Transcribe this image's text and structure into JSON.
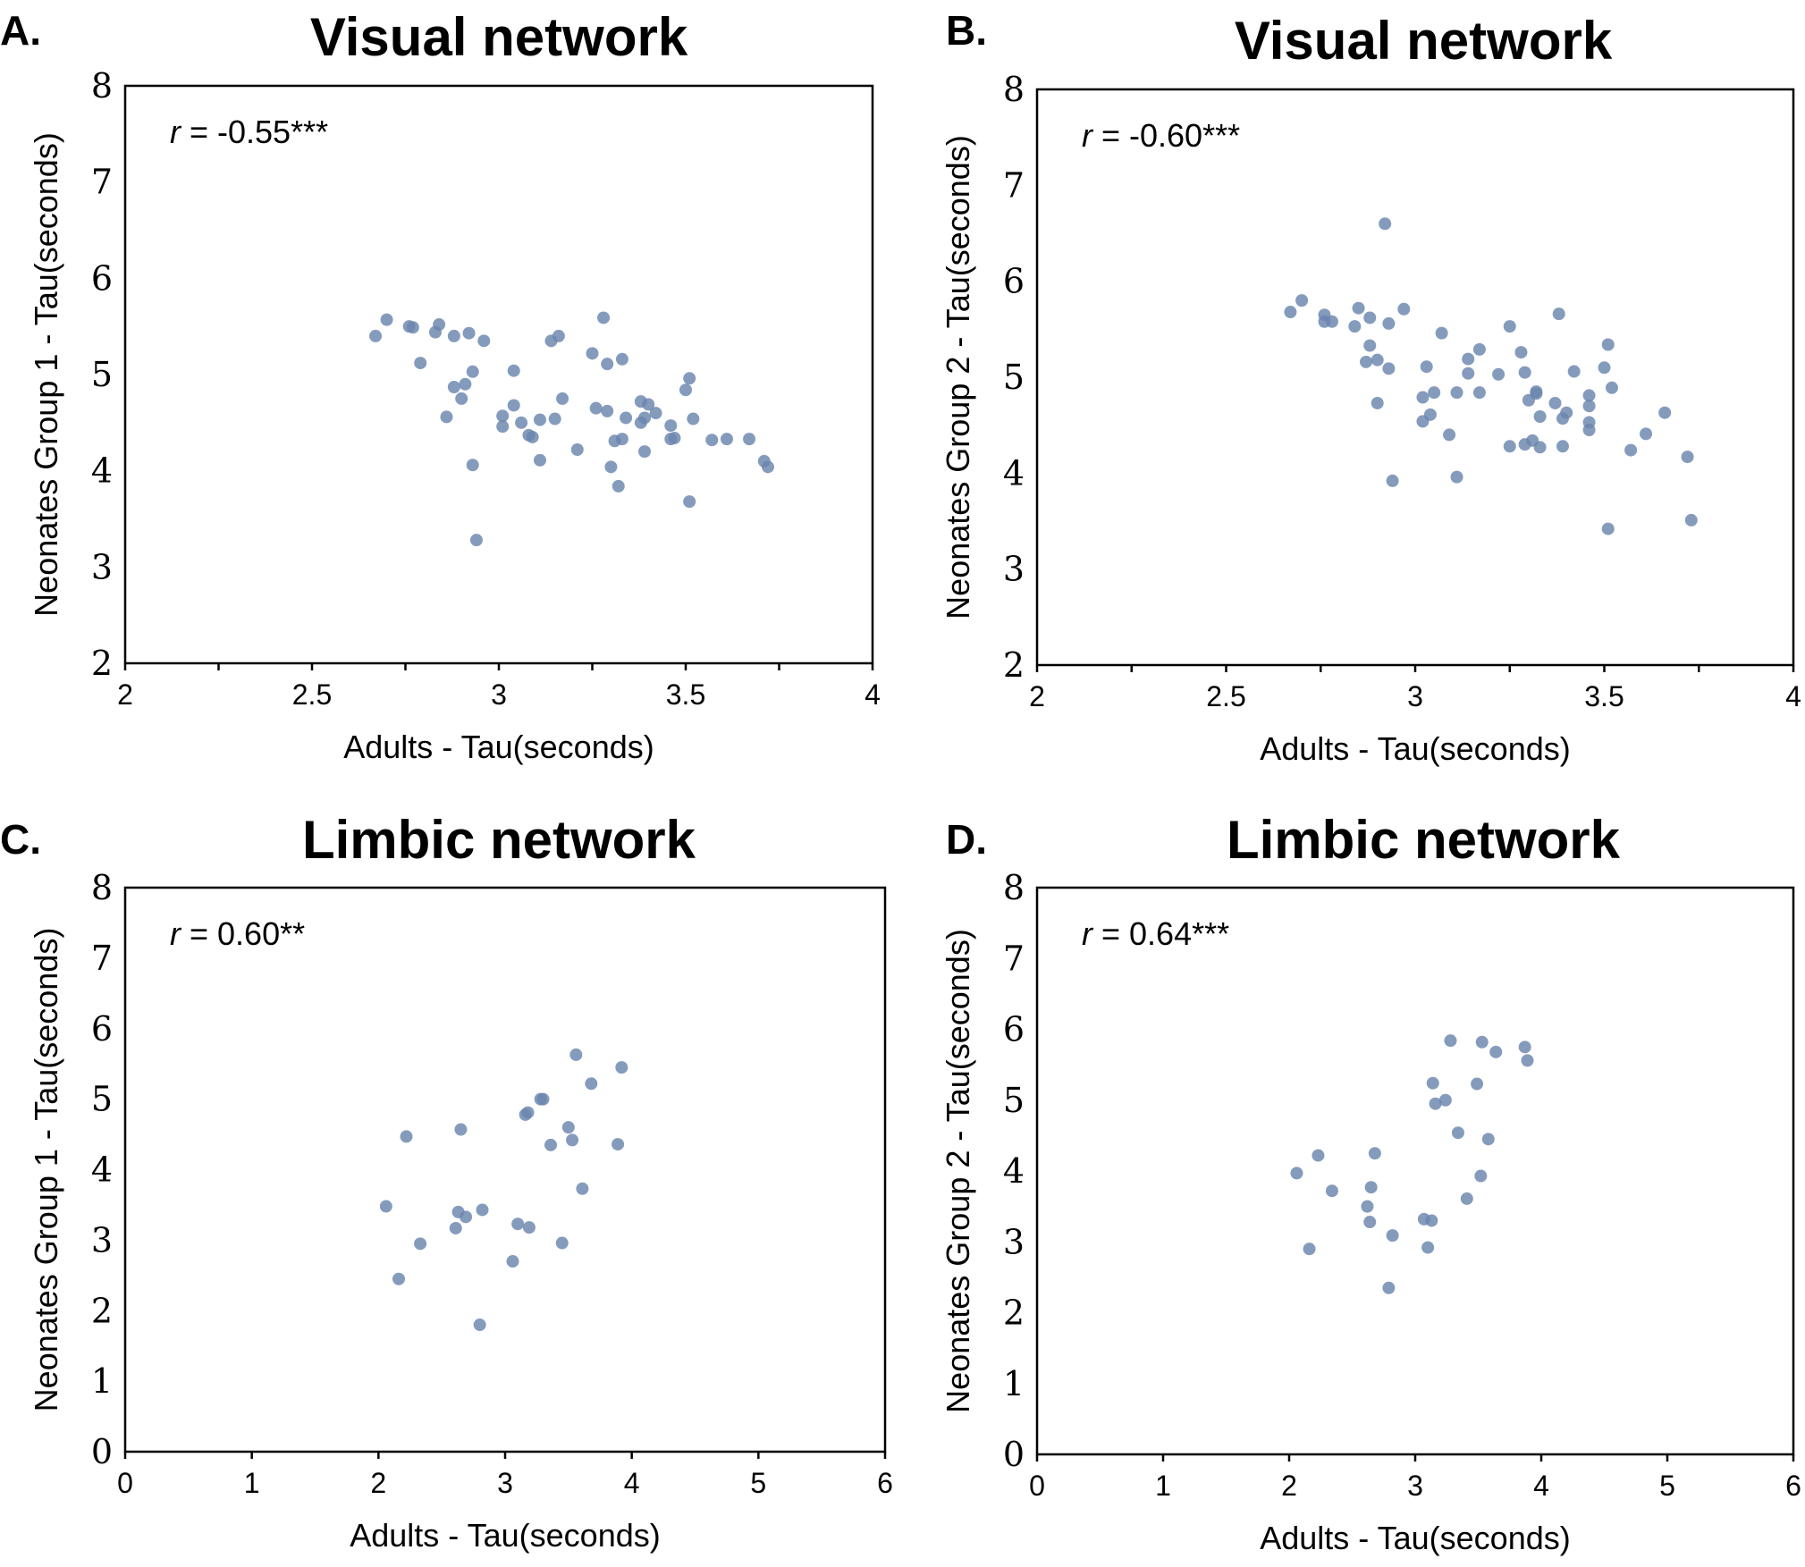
{
  "chart_data": [
    {
      "type": "scatter",
      "panel": "A.",
      "title": "Visual network",
      "xlabel": "Adults - Tau(seconds)",
      "ylabel": "Neonates Group 1 - Tau(seconds)",
      "annotation": {
        "r": "r",
        "text": " = -0.55***"
      },
      "xlim": [
        2,
        4
      ],
      "ylim": [
        2,
        8
      ],
      "xticks": [
        2,
        2.5,
        3,
        3.5,
        4
      ],
      "xtick_labels": [
        "2",
        "2.5",
        "3",
        "3.5",
        "4"
      ],
      "yticks": [
        2,
        3,
        4,
        5,
        6,
        7,
        8
      ],
      "ytick_labels": [
        "2",
        "3",
        "4",
        "5",
        "6",
        "7",
        "8"
      ],
      "point_color": "#6a85ad",
      "points": [
        [
          2.67,
          5.4
        ],
        [
          2.7,
          5.57
        ],
        [
          2.76,
          5.5
        ],
        [
          2.77,
          5.49
        ],
        [
          2.79,
          5.12
        ],
        [
          2.83,
          5.44
        ],
        [
          2.84,
          5.52
        ],
        [
          2.86,
          4.56
        ],
        [
          2.88,
          5.4
        ],
        [
          2.88,
          4.87
        ],
        [
          2.9,
          4.75
        ],
        [
          2.91,
          4.9
        ],
        [
          2.92,
          5.43
        ],
        [
          2.93,
          5.03
        ],
        [
          2.93,
          4.06
        ],
        [
          2.94,
          3.28
        ],
        [
          2.96,
          5.35
        ],
        [
          3.01,
          4.57
        ],
        [
          3.01,
          4.46
        ],
        [
          3.04,
          5.04
        ],
        [
          3.04,
          4.68
        ],
        [
          3.06,
          4.5
        ],
        [
          3.08,
          4.37
        ],
        [
          3.09,
          4.35
        ],
        [
          3.11,
          4.53
        ],
        [
          3.11,
          4.11
        ],
        [
          3.14,
          5.35
        ],
        [
          3.15,
          4.54
        ],
        [
          3.16,
          5.4
        ],
        [
          3.17,
          4.75
        ],
        [
          3.21,
          4.22
        ],
        [
          3.25,
          5.22
        ],
        [
          3.26,
          4.65
        ],
        [
          3.28,
          5.59
        ],
        [
          3.29,
          5.11
        ],
        [
          3.29,
          4.62
        ],
        [
          3.3,
          4.04
        ],
        [
          3.31,
          4.31
        ],
        [
          3.32,
          3.84
        ],
        [
          3.33,
          5.16
        ],
        [
          3.33,
          4.33
        ],
        [
          3.34,
          4.55
        ],
        [
          3.38,
          4.5
        ],
        [
          3.38,
          4.72
        ],
        [
          3.39,
          4.55
        ],
        [
          3.39,
          4.2
        ],
        [
          3.4,
          4.69
        ],
        [
          3.42,
          4.6
        ],
        [
          3.46,
          4.47
        ],
        [
          3.46,
          4.33
        ],
        [
          3.47,
          4.34
        ],
        [
          3.5,
          4.84
        ],
        [
          3.51,
          4.96
        ],
        [
          3.51,
          3.68
        ],
        [
          3.52,
          4.54
        ],
        [
          3.57,
          4.32
        ],
        [
          3.61,
          4.33
        ],
        [
          3.67,
          4.33
        ],
        [
          3.71,
          4.1
        ],
        [
          3.72,
          4.04
        ]
      ]
    },
    {
      "type": "scatter",
      "panel": "B.",
      "title": "Visual network",
      "xlabel": "Adults - Tau(seconds)",
      "ylabel": "Neonates Group 2 - Tau(seconds)",
      "annotation": {
        "r": "r",
        "text": " = -0.60***"
      },
      "xlim": [
        2,
        4
      ],
      "ylim": [
        2,
        8
      ],
      "xticks": [
        2,
        2.5,
        3,
        3.5,
        4
      ],
      "xtick_labels": [
        "2",
        "2.5",
        "3",
        "3.5",
        "4"
      ],
      "yticks": [
        2,
        3,
        4,
        5,
        6,
        7,
        8
      ],
      "ytick_labels": [
        "2",
        "3",
        "4",
        "5",
        "6",
        "7",
        "8"
      ],
      "point_color": "#6a85ad",
      "points": [
        [
          2.67,
          5.68
        ],
        [
          2.7,
          5.8
        ],
        [
          2.76,
          5.65
        ],
        [
          2.76,
          5.58
        ],
        [
          2.78,
          5.58
        ],
        [
          2.84,
          5.53
        ],
        [
          2.85,
          5.72
        ],
        [
          2.87,
          5.16
        ],
        [
          2.88,
          5.62
        ],
        [
          2.88,
          5.33
        ],
        [
          2.9,
          5.18
        ],
        [
          2.9,
          4.73
        ],
        [
          2.92,
          6.6
        ],
        [
          2.93,
          5.09
        ],
        [
          2.93,
          5.56
        ],
        [
          2.94,
          3.92
        ],
        [
          2.97,
          5.71
        ],
        [
          3.02,
          4.79
        ],
        [
          3.02,
          4.54
        ],
        [
          3.03,
          5.11
        ],
        [
          3.04,
          4.61
        ],
        [
          3.05,
          4.84
        ],
        [
          3.07,
          5.46
        ],
        [
          3.09,
          4.4
        ],
        [
          3.11,
          4.84
        ],
        [
          3.11,
          3.96
        ],
        [
          3.14,
          5.19
        ],
        [
          3.14,
          5.04
        ],
        [
          3.17,
          4.84
        ],
        [
          3.17,
          5.29
        ],
        [
          3.22,
          5.03
        ],
        [
          3.25,
          5.53
        ],
        [
          3.25,
          4.28
        ],
        [
          3.28,
          5.26
        ],
        [
          3.29,
          5.05
        ],
        [
          3.29,
          4.3
        ],
        [
          3.3,
          4.76
        ],
        [
          3.31,
          4.34
        ],
        [
          3.32,
          4.85
        ],
        [
          3.32,
          4.83
        ],
        [
          3.33,
          4.59
        ],
        [
          3.33,
          4.27
        ],
        [
          3.37,
          4.73
        ],
        [
          3.38,
          5.66
        ],
        [
          3.39,
          4.28
        ],
        [
          3.39,
          4.57
        ],
        [
          3.4,
          4.63
        ],
        [
          3.42,
          5.06
        ],
        [
          3.46,
          4.81
        ],
        [
          3.46,
          4.7
        ],
        [
          3.46,
          4.53
        ],
        [
          3.46,
          4.45
        ],
        [
          3.5,
          5.1
        ],
        [
          3.51,
          5.34
        ],
        [
          3.51,
          3.42
        ],
        [
          3.52,
          4.89
        ],
        [
          3.57,
          4.24
        ],
        [
          3.61,
          4.41
        ],
        [
          3.66,
          4.63
        ],
        [
          3.72,
          4.17
        ],
        [
          3.73,
          3.51
        ]
      ]
    },
    {
      "type": "scatter",
      "panel": "C.",
      "title": "Limbic network",
      "xlabel": "Adults - Tau(seconds)",
      "ylabel": "Neonates  Group 1 - Tau(seconds)",
      "annotation": {
        "r": "r",
        "text": " = 0.60**"
      },
      "xlim": [
        0,
        6
      ],
      "ylim": [
        0,
        8
      ],
      "xticks": [
        0,
        1,
        2,
        3,
        4,
        5,
        6
      ],
      "xtick_labels": [
        "0",
        "1",
        "2",
        "3",
        "4",
        "5",
        "6"
      ],
      "yticks": [
        0,
        1,
        2,
        3,
        4,
        5,
        6,
        7,
        8
      ],
      "ytick_labels": [
        "0",
        "1",
        "2",
        "3",
        "4",
        "5",
        "6",
        "7",
        "8"
      ],
      "point_color": "#6a85ad",
      "points": [
        [
          2.06,
          3.48
        ],
        [
          2.16,
          2.45
        ],
        [
          2.22,
          4.47
        ],
        [
          2.33,
          2.95
        ],
        [
          2.61,
          3.17
        ],
        [
          2.63,
          3.4
        ],
        [
          2.65,
          4.57
        ],
        [
          2.69,
          3.33
        ],
        [
          2.8,
          1.8
        ],
        [
          2.82,
          3.43
        ],
        [
          3.06,
          2.7
        ],
        [
          3.1,
          3.23
        ],
        [
          3.16,
          4.78
        ],
        [
          3.18,
          4.81
        ],
        [
          3.19,
          3.18
        ],
        [
          3.28,
          5.0
        ],
        [
          3.3,
          5.0
        ],
        [
          3.36,
          4.35
        ],
        [
          3.45,
          2.96
        ],
        [
          3.5,
          4.6
        ],
        [
          3.53,
          4.42
        ],
        [
          3.56,
          5.63
        ],
        [
          3.61,
          3.73
        ],
        [
          3.68,
          5.22
        ],
        [
          3.89,
          4.36
        ],
        [
          3.92,
          5.45
        ]
      ]
    },
    {
      "type": "scatter",
      "panel": "D.",
      "title": "Limbic network",
      "xlabel": "Adults - Tau(seconds)",
      "ylabel": "Neonates  Group 2 - Tau(seconds)",
      "annotation": {
        "r": "r",
        "text": " = 0.64***"
      },
      "xlim": [
        0,
        6
      ],
      "ylim": [
        0,
        8
      ],
      "xticks": [
        0,
        1,
        2,
        3,
        4,
        5,
        6
      ],
      "xtick_labels": [
        "0",
        "1",
        "2",
        "3",
        "4",
        "5",
        "6"
      ],
      "yticks": [
        0,
        1,
        2,
        3,
        4,
        5,
        6,
        7,
        8
      ],
      "ytick_labels": [
        "0",
        "1",
        "2",
        "3",
        "4",
        "5",
        "6",
        "7",
        "8"
      ],
      "point_color": "#6a85ad",
      "points": [
        [
          2.06,
          3.97
        ],
        [
          2.16,
          2.9
        ],
        [
          2.23,
          4.22
        ],
        [
          2.34,
          3.72
        ],
        [
          2.62,
          3.5
        ],
        [
          2.64,
          3.28
        ],
        [
          2.65,
          3.77
        ],
        [
          2.68,
          4.25
        ],
        [
          2.79,
          2.35
        ],
        [
          2.82,
          3.09
        ],
        [
          3.07,
          3.32
        ],
        [
          3.1,
          2.92
        ],
        [
          3.13,
          3.3
        ],
        [
          3.14,
          5.24
        ],
        [
          3.16,
          4.95
        ],
        [
          3.24,
          5.0
        ],
        [
          3.28,
          5.84
        ],
        [
          3.34,
          4.54
        ],
        [
          3.49,
          5.23
        ],
        [
          3.52,
          3.93
        ],
        [
          3.53,
          5.82
        ],
        [
          3.41,
          3.61
        ],
        [
          3.58,
          4.45
        ],
        [
          3.64,
          5.68
        ],
        [
          3.87,
          5.75
        ],
        [
          3.89,
          5.56
        ]
      ]
    }
  ]
}
